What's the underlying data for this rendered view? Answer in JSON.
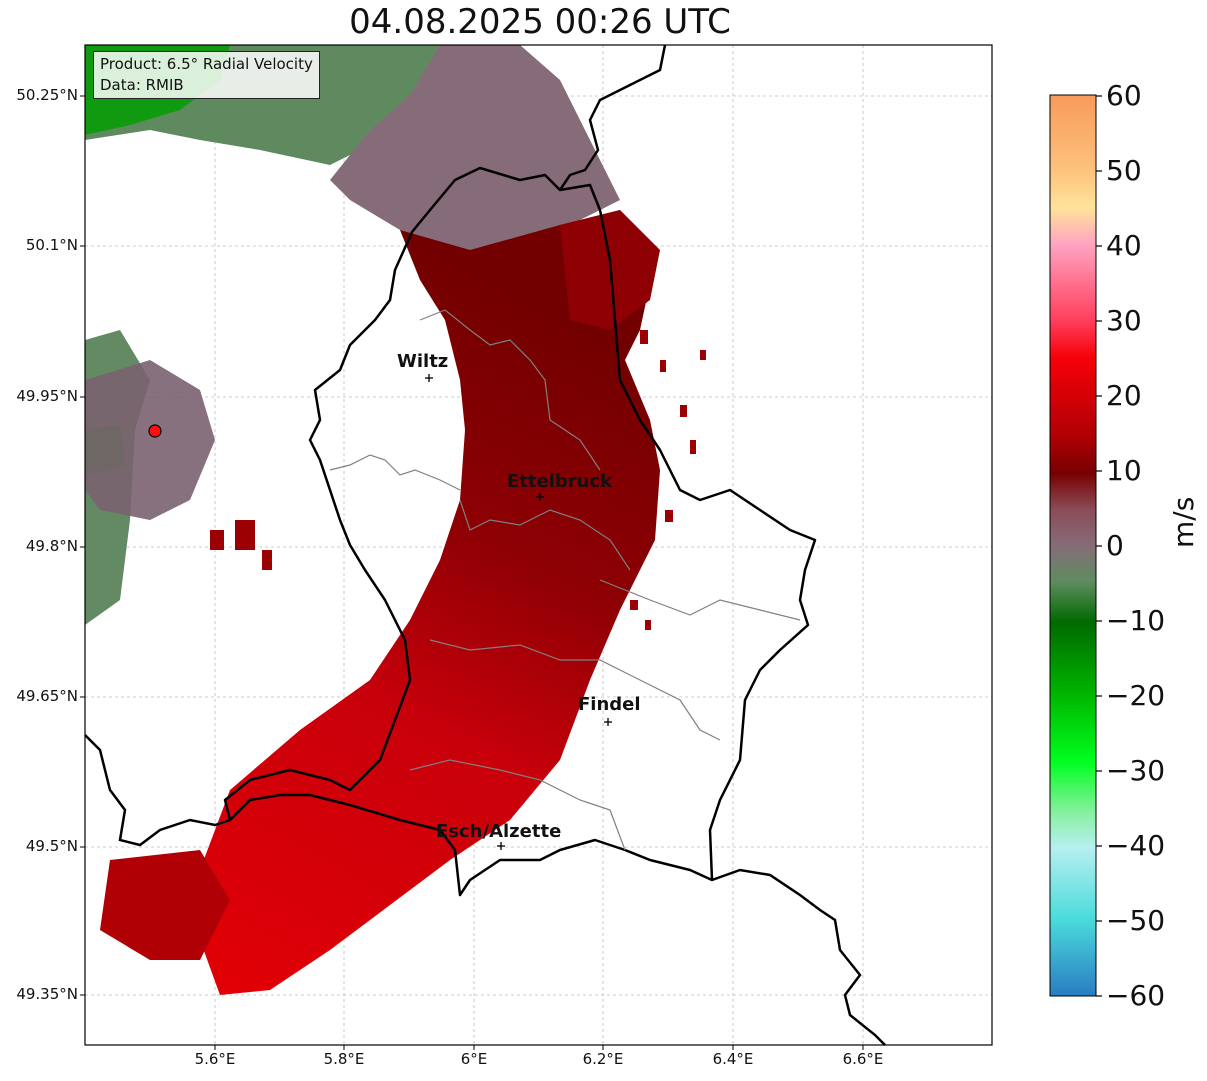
{
  "title": "04.08.2025 00:26 UTC",
  "info": {
    "product": "Product: 6.5° Radial Velocity",
    "data_source": "Data: RMIB"
  },
  "axes": {
    "y_labels": [
      "50.25°N",
      "50.1°N",
      "49.95°N",
      "49.8°N",
      "49.65°N",
      "49.5°N",
      "49.35°N"
    ],
    "x_labels": [
      "5.6°E",
      "5.8°E",
      "6°E",
      "6.2°E",
      "6.4°E",
      "6.6°E"
    ]
  },
  "cities": [
    {
      "name": "Wiltz"
    },
    {
      "name": "Ettelbruck"
    },
    {
      "name": "Findel"
    },
    {
      "name": "Esch/Alzette"
    }
  ],
  "colorbar": {
    "unit": "m/s",
    "ticks": [
      "60",
      "50",
      "40",
      "30",
      "20",
      "10",
      "0",
      "−10",
      "−20",
      "−30",
      "−40",
      "−50",
      "−60"
    ],
    "colors": {
      "p60": "#f79b59",
      "p50": "#fdc27d",
      "p45": "#ffe39a",
      "p40": "#ffa3c2",
      "p30": "#ff3f5c",
      "p25": "#f60008",
      "p15": "#b30005",
      "p10": "#780000",
      "p5": "#8a4c58",
      "zero": "#866c78",
      "m3": "#5e8c60",
      "m10": "#006a00",
      "m20": "#00b500",
      "m28": "#00ff1e",
      "m34": "#85f09d",
      "m40": "#b7eff0",
      "m50": "#4adbdc",
      "m60": "#2a7cc2"
    }
  }
}
